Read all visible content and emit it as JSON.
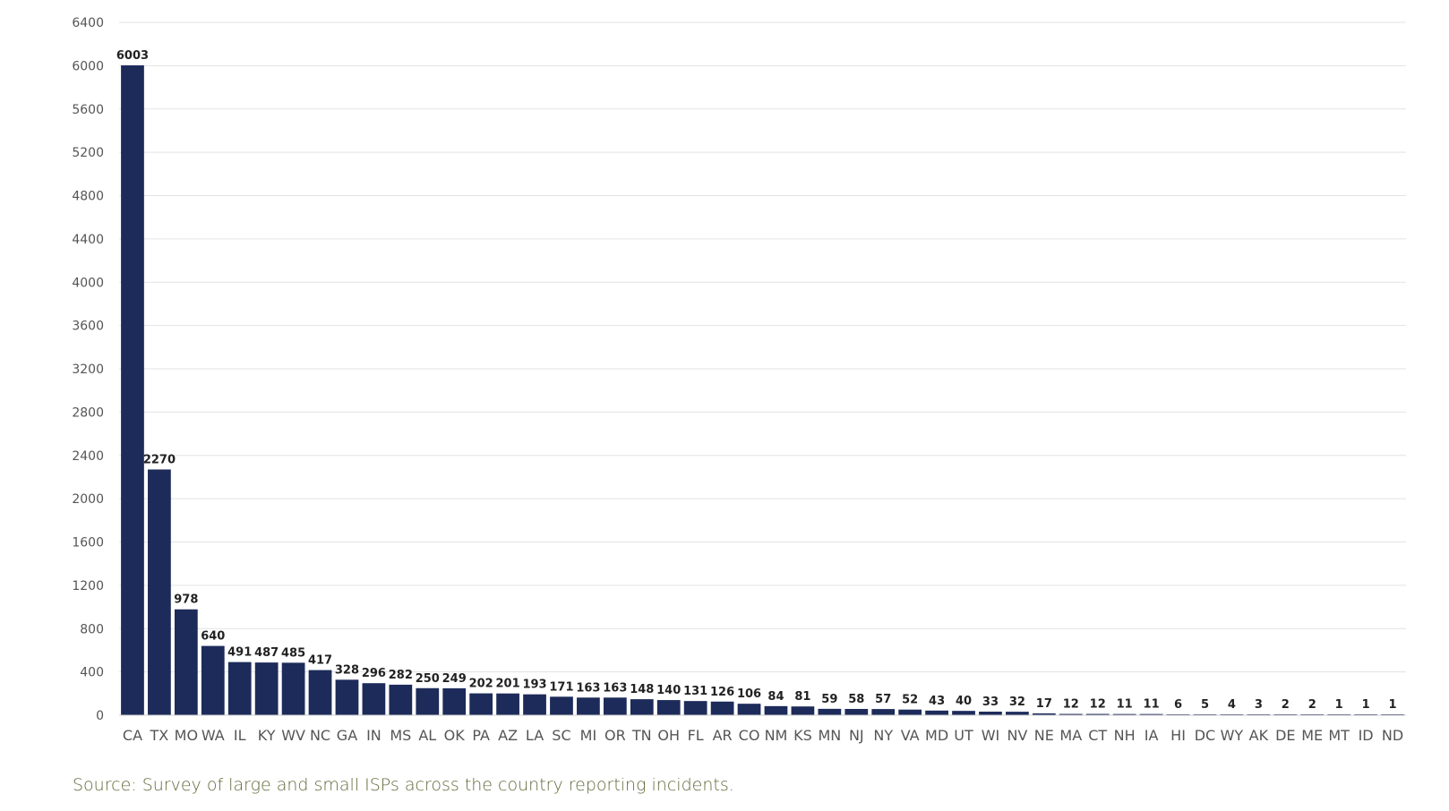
{
  "chart_data": {
    "type": "bar",
    "categories": [
      "CA",
      "TX",
      "MO",
      "WA",
      "IL",
      "KY",
      "WV",
      "NC",
      "GA",
      "IN",
      "MS",
      "AL",
      "OK",
      "PA",
      "AZ",
      "LA",
      "SC",
      "MI",
      "OR",
      "TN",
      "OH",
      "FL",
      "AR",
      "CO",
      "NM",
      "KS",
      "MN",
      "NJ",
      "NY",
      "VA",
      "MD",
      "UT",
      "WI",
      "NV",
      "NE",
      "MA",
      "CT",
      "NH",
      "IA",
      "HI",
      "DC",
      "WY",
      "AK",
      "DE",
      "ME",
      "MT",
      "ID",
      "ND"
    ],
    "values": [
      6003,
      2270,
      978,
      640,
      491,
      487,
      485,
      417,
      328,
      296,
      282,
      250,
      249,
      202,
      201,
      193,
      171,
      163,
      163,
      148,
      140,
      131,
      126,
      106,
      84,
      81,
      59,
      58,
      57,
      52,
      43,
      40,
      33,
      32,
      17,
      12,
      12,
      11,
      11,
      6,
      5,
      4,
      3,
      2,
      2,
      1,
      1,
      1
    ],
    "ylim": [
      0,
      6400
    ],
    "yticks": [
      0,
      400,
      800,
      1200,
      1600,
      2000,
      2400,
      2800,
      3200,
      3600,
      4000,
      4400,
      4800,
      5200,
      5600,
      6000,
      6400
    ],
    "grid": true,
    "data_labels": true,
    "bar_color": "#1d2b5a",
    "grid_color": "#e3e3e3",
    "tick_label_color": "#555555",
    "data_label_color": "#222222"
  },
  "source_note": "Source: Survey of large and small ISPs across the country reporting incidents."
}
